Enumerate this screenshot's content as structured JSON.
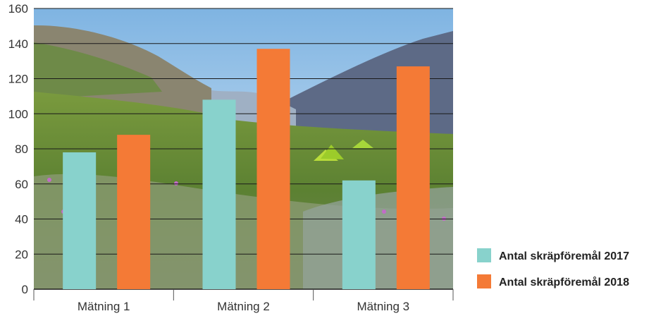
{
  "chart_data": {
    "type": "bar",
    "categories": [
      "Mätning 1",
      "Mätning 2",
      "Mätning 3"
    ],
    "series": [
      {
        "name": "Antal skräpföremål 2017",
        "values": [
          78,
          108,
          62
        ],
        "color": "#88d2cc"
      },
      {
        "name": "Antal skräpföremål 2018",
        "values": [
          88,
          137,
          127
        ],
        "color": "#f47a36"
      }
    ],
    "ylim": [
      0,
      160
    ],
    "yticks": [
      0,
      20,
      40,
      60,
      80,
      100,
      120,
      140,
      160
    ],
    "grid": true,
    "legend_position": "bottom-right",
    "background": "photo of a mountain valley with green slopes, wildflowers and tents"
  }
}
